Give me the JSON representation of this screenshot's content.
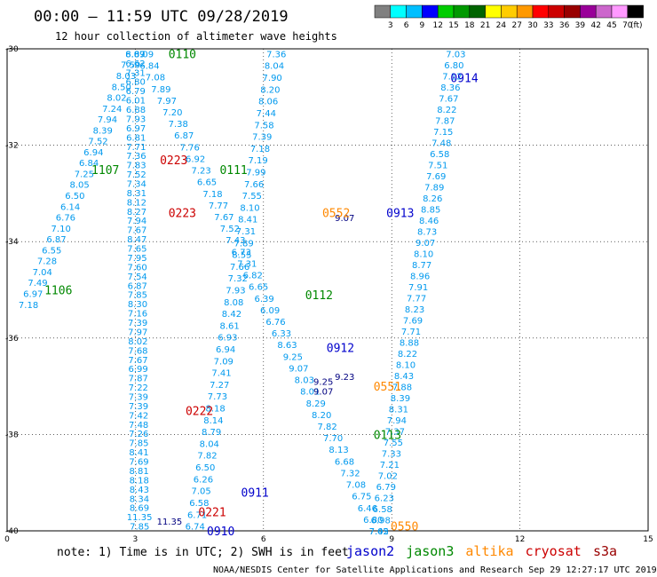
{
  "header": {
    "title": "00:00 – 11:59 UTC 09/28/2019",
    "subtitle": "12 hour collection of altimeter wave heights"
  },
  "colorbar": {
    "unit_label": "(ft)",
    "labels": [
      "3",
      "6",
      "9",
      "12",
      "15",
      "18",
      "21",
      "24",
      "27",
      "30",
      "33",
      "36",
      "39",
      "42",
      "45",
      "70"
    ],
    "colors": [
      "#808080",
      "#00ffff",
      "#00bfff",
      "#0000ff",
      "#00cd00",
      "#009900",
      "#006400",
      "#ffff00",
      "#ffcc00",
      "#ff9900",
      "#ff0000",
      "#cc0000",
      "#990000",
      "#990099",
      "#cc66cc",
      "#ff99ff",
      "#000000"
    ]
  },
  "footer": {
    "note": "note: 1) Time is in UTC; 2) SWH is in feet",
    "credit": "NOAA/NESDIS Center for Satellite Applications and Research   Sep 29 12:27:17 UTC 2019",
    "satellites": [
      {
        "name": "jason2",
        "color": "#0000cc"
      },
      {
        "name": "jason3",
        "color": "#008800"
      },
      {
        "name": "altika",
        "color": "#ff8800"
      },
      {
        "name": "cryosat",
        "color": "#cc0000"
      },
      {
        "name": "s3a",
        "color": "#990000"
      }
    ]
  },
  "chart_data": {
    "type": "scatter",
    "title": "00:00 – 11:59 UTC 09/28/2019",
    "xlim": [
      0,
      15
    ],
    "ylim": [
      -40,
      -30
    ],
    "x_ticks": [
      0,
      3,
      6,
      9,
      12,
      15
    ],
    "y_ticks": [
      -30,
      -32,
      -34,
      -36,
      -38,
      -40
    ],
    "grid": true,
    "value_color": "#0099ee",
    "tracks": [
      {
        "x0": 0.5,
        "y0": -35.3,
        "x1": 3.0,
        "y1": -30.1,
        "values": [
          "7.18",
          "6.97",
          "7.49",
          "7.04",
          "7.28",
          "6.55",
          "6.87",
          "7.10",
          "6.76",
          "6.14",
          "6.50",
          "8.05",
          "7.25",
          "6.84",
          "6.94",
          "7.52",
          "8.39",
          "7.94",
          "7.24",
          "8.02",
          "8.50",
          "8.03",
          "7.59",
          "8.09"
        ]
      },
      {
        "x0": 3.0,
        "y0": -30.1,
        "x1": 3.1,
        "y1": -39.9,
        "values": [
          "6.67",
          "6.62",
          "7.31",
          "6.80",
          "6.79",
          "6.01",
          "6.88",
          "7.93",
          "6.97",
          "6.81",
          "7.71",
          "7.36",
          "7.83",
          "7.52",
          "7.34",
          "8.31",
          "8.12",
          "8.27",
          "7.94",
          "7.67",
          "8.47",
          "7.65",
          "7.95",
          "7.60",
          "7.54",
          "6.87",
          "7.85",
          "8.30",
          "7.16",
          "7.39",
          "7.97",
          "8.02",
          "7.68",
          "7.67",
          "6.99",
          "7.87",
          "7.22",
          "7.39",
          "7.39",
          "7.42",
          "7.48",
          "7.26",
          "7.85",
          "8.41",
          "7.69",
          "8.81",
          "8.18",
          "8.43",
          "8.34",
          "8.69",
          "11.35",
          "7.85"
        ]
      },
      {
        "x0": 3.2,
        "y0": -30.1,
        "x1": 8.7,
        "y1": -40.0,
        "values": [
          "8.09",
          "6.84",
          "7.08",
          "7.89",
          "7.97",
          "7.20",
          "7.38",
          "6.87",
          "7.76",
          "6.92",
          "7.23",
          "6.65",
          "7.18",
          "7.77",
          "7.67",
          "7.52",
          "7.43",
          "6.73",
          "7.31",
          "6.82",
          "6.65",
          "6.39",
          "6.09",
          "6.76",
          "6.33",
          "8.63",
          "9.25",
          "9.07",
          "8.03",
          "8.01",
          "8.29",
          "8.20",
          "7.82",
          "7.70",
          "8.13",
          "6.68",
          "7.32",
          "7.08",
          "6.75",
          "6.46",
          "6.80",
          "7.42"
        ]
      },
      {
        "x0": 4.4,
        "y0": -39.9,
        "x1": 6.3,
        "y1": -30.1,
        "values": [
          "6.74",
          "6.71",
          "6.58",
          "7.05",
          "6.26",
          "6.50",
          "7.82",
          "8.04",
          "8.79",
          "8.14",
          "8.18",
          "7.73",
          "7.27",
          "7.41",
          "7.09",
          "6.94",
          "6.93",
          "8.61",
          "8.42",
          "8.08",
          "7.93",
          "7.32",
          "7.66",
          "8.55",
          "7.89",
          "7.31",
          "8.41",
          "8.10",
          "7.55",
          "7.66",
          "7.99",
          "7.19",
          "7.18",
          "7.39",
          "7.58",
          "7.44",
          "8.06",
          "8.20",
          "7.90",
          "8.04",
          "7.36"
        ]
      },
      {
        "x0": 8.7,
        "y0": -40.0,
        "x1": 10.5,
        "y1": -30.1,
        "values": [
          "7.05",
          "6.98",
          "6.58",
          "6.23",
          "6.79",
          "7.02",
          "7.21",
          "7.33",
          "7.55",
          "7.37",
          "7.94",
          "8.31",
          "8.39",
          "7.88",
          "8.43",
          "8.10",
          "8.22",
          "8.88",
          "7.71",
          "7.69",
          "8.23",
          "7.77",
          "7.91",
          "8.96",
          "8.77",
          "8.10",
          "9.07",
          "8.73",
          "8.46",
          "8.85",
          "8.26",
          "7.89",
          "7.69",
          "7.51",
          "6.58",
          "7.48",
          "7.15",
          "7.87",
          "8.22",
          "7.67",
          "8.36",
          "7.12",
          "6.80",
          "7.03"
        ]
      }
    ],
    "pass_labels": [
      {
        "text": "0110",
        "x": 4.1,
        "y": -30.1,
        "color": "#008800"
      },
      {
        "text": "1107",
        "x": 2.3,
        "y": -32.5,
        "color": "#008800"
      },
      {
        "text": "1106",
        "x": 1.2,
        "y": -35.0,
        "color": "#008800"
      },
      {
        "text": "0223",
        "x": 3.9,
        "y": -32.3,
        "color": "#cc0000"
      },
      {
        "text": "0111",
        "x": 5.3,
        "y": -32.5,
        "color": "#008800"
      },
      {
        "text": "0223",
        "x": 4.1,
        "y": -33.4,
        "color": "#cc0000"
      },
      {
        "text": "0222",
        "x": 4.5,
        "y": -37.5,
        "color": "#cc0000"
      },
      {
        "text": "0221",
        "x": 4.8,
        "y": -39.6,
        "color": "#cc0000"
      },
      {
        "text": "0910",
        "x": 5.0,
        "y": -40.0,
        "color": "#0000cc"
      },
      {
        "text": "0911",
        "x": 5.8,
        "y": -39.2,
        "color": "#0000cc"
      },
      {
        "text": "0112",
        "x": 7.3,
        "y": -35.1,
        "color": "#008800"
      },
      {
        "text": "0912",
        "x": 7.8,
        "y": -36.2,
        "color": "#0000cc"
      },
      {
        "text": "0113",
        "x": 8.9,
        "y": -38.0,
        "color": "#008800"
      },
      {
        "text": "0551",
        "x": 8.9,
        "y": -37.0,
        "color": "#ff8800"
      },
      {
        "text": "0550",
        "x": 9.3,
        "y": -39.9,
        "color": "#ff8800"
      },
      {
        "text": "0552",
        "x": 7.7,
        "y": -33.4,
        "color": "#ff8800"
      },
      {
        "text": "0913",
        "x": 9.2,
        "y": -33.4,
        "color": "#0000cc"
      },
      {
        "text": "0914",
        "x": 10.7,
        "y": -30.6,
        "color": "#0000cc"
      }
    ],
    "dark_values": [
      {
        "text": "11.35",
        "x": 3.8,
        "y": -39.8
      },
      {
        "text": "9.07",
        "x": 7.9,
        "y": -33.5
      },
      {
        "text": "9.23",
        "x": 7.9,
        "y": -36.8
      },
      {
        "text": "9.25",
        "x": 7.4,
        "y": -36.9
      },
      {
        "text": "9.07",
        "x": 7.4,
        "y": -37.1
      }
    ]
  }
}
